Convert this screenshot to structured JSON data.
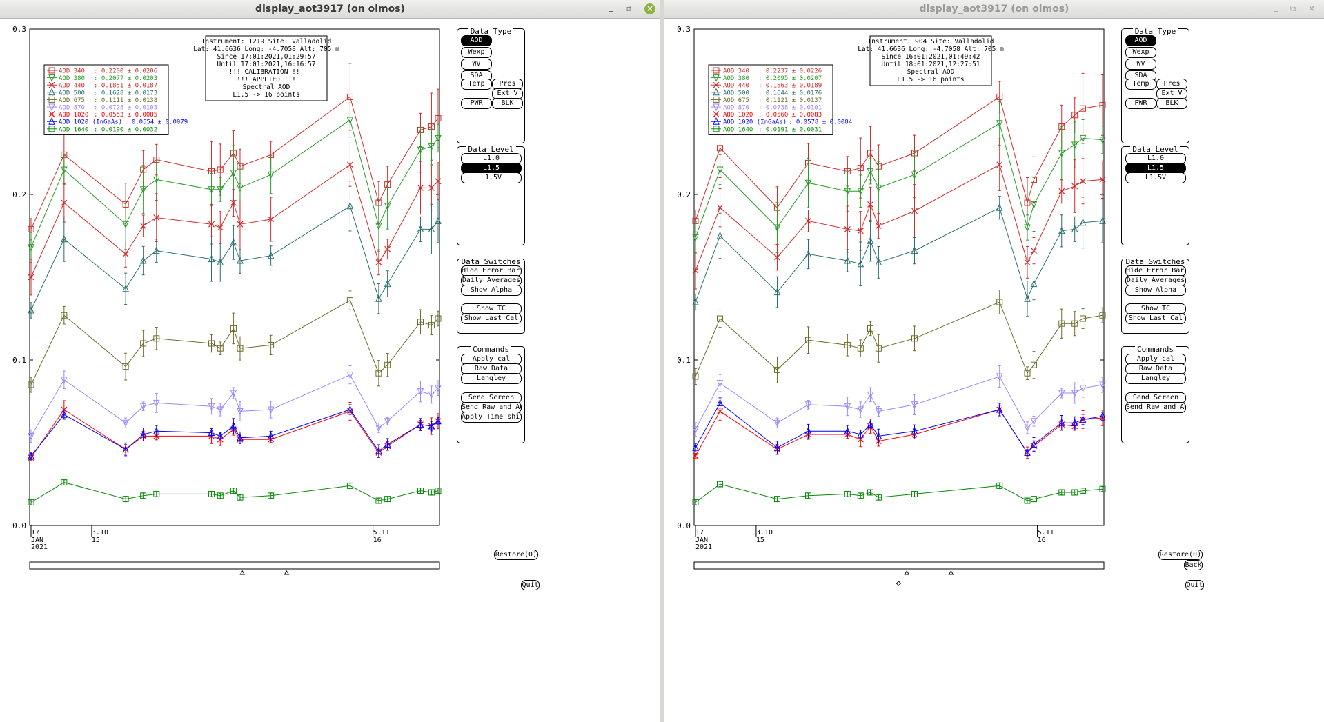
{
  "windows": [
    {
      "title": "display_aot3917 (on olmos)",
      "active": true,
      "info": [
        "Instrument: 1219 Site: Valladolid",
        "Lat: 41.6636 Long: -4.7058 Alt: 705 m",
        "Since 17:01:2021,01:29:57",
        "Until 17:01:2021,16:16:57",
        "!!! CALIBRATION !!!",
        "!!!  APPLIED  !!!",
        "Spectral AOD",
        "L1.5 -> 16 points"
      ],
      "legend": [
        {
          "label": "AOD 340",
          "value": ": 0.2200 ± 0.0206",
          "color": "#d12a2a",
          "marker": "square"
        },
        {
          "label": "AOD 380",
          "value": ": 0.2077 ± 0.0203",
          "color": "#2a9a2a",
          "marker": "tri-down"
        },
        {
          "label": "AOD 440",
          "value": ": 0.1851 ± 0.0187",
          "color": "#d12a2a",
          "marker": "cross"
        },
        {
          "label": "AOD 500",
          "value": ": 0.1628 ± 0.0173",
          "color": "#2a6e6e",
          "marker": "tri-up"
        },
        {
          "label": "AOD 675",
          "value": ": 0.1111 ± 0.0138",
          "color": "#6b6b2a",
          "marker": "square"
        },
        {
          "label": "AOD 870",
          "value": ": 0.0728 ± 0.0103",
          "color": "#9a88ff",
          "marker": "tri-down"
        },
        {
          "label": "AOD 1020",
          "value": ": 0.0553 ± 0.0085",
          "color": "#ff0000",
          "marker": "cross"
        },
        {
          "label": "AOD 1020 (InGaAs)",
          "value": ": 0.0554 ± 0.0079",
          "color": "#0000ff",
          "marker": "tri-up"
        },
        {
          "label": "AOD 1640",
          "value": ": 0.0190 ± 0.0032",
          "color": "#0a8a0a",
          "marker": "square"
        }
      ],
      "chart_data": {
        "type": "line",
        "ylim": [
          0,
          0.3
        ],
        "yticks": [
          "0.0",
          "0.1",
          "0.2",
          "0.3"
        ],
        "x_tick_labels": [
          {
            "top": "17",
            "lines": [
              "JAN",
              "2021"
            ]
          },
          {
            "top": "3.10",
            "lines": [
              "15"
            ]
          },
          {
            "top": "5.11",
            "lines": [
              "16"
            ]
          }
        ],
        "x": [
          0,
          1.5,
          4.3,
          5.1,
          5.7,
          8.2,
          8.6,
          9.2,
          9.5,
          10.9,
          14.5,
          15.8,
          16.2,
          17.7,
          18.2,
          18.5
        ],
        "series": [
          {
            "name": "AOD 340",
            "values": [
              0.179,
              0.224,
              0.194,
              0.215,
              0.221,
              0.214,
              0.215,
              0.225,
              0.217,
              0.224,
              0.259,
              0.195,
              0.206,
              0.239,
              0.241,
              0.246
            ]
          },
          {
            "name": "AOD 380",
            "values": [
              0.168,
              0.215,
              0.182,
              0.203,
              0.209,
              0.203,
              0.203,
              0.213,
              0.204,
              0.212,
              0.245,
              0.181,
              0.193,
              0.227,
              0.229,
              0.234
            ]
          },
          {
            "name": "AOD 440",
            "values": [
              0.15,
              0.195,
              0.164,
              0.181,
              0.186,
              0.182,
              0.18,
              0.195,
              0.182,
              0.185,
              0.218,
              0.159,
              0.167,
              0.204,
              0.204,
              0.208
            ]
          },
          {
            "name": "AOD 500",
            "values": [
              0.13,
              0.173,
              0.143,
              0.16,
              0.166,
              0.161,
              0.159,
              0.171,
              0.16,
              0.163,
              0.193,
              0.137,
              0.146,
              0.179,
              0.179,
              0.184
            ]
          },
          {
            "name": "AOD 675",
            "values": [
              0.085,
              0.127,
              0.096,
              0.11,
              0.113,
              0.11,
              0.107,
              0.119,
              0.107,
              0.109,
              0.136,
              0.092,
              0.097,
              0.123,
              0.121,
              0.125
            ]
          },
          {
            "name": "AOD 870",
            "values": [
              0.054,
              0.088,
              0.062,
              0.072,
              0.074,
              0.072,
              0.07,
              0.08,
              0.069,
              0.07,
              0.091,
              0.059,
              0.063,
              0.081,
              0.079,
              0.083
            ]
          },
          {
            "name": "AOD 1020",
            "values": [
              0.041,
              0.07,
              0.046,
              0.054,
              0.054,
              0.054,
              0.052,
              0.058,
              0.052,
              0.052,
              0.069,
              0.044,
              0.048,
              0.061,
              0.06,
              0.063
            ]
          },
          {
            "name": "AOD 1020 (InGaAs)",
            "values": [
              0.042,
              0.067,
              0.046,
              0.055,
              0.057,
              0.056,
              0.054,
              0.06,
              0.053,
              0.054,
              0.07,
              0.045,
              0.049,
              0.061,
              0.06,
              0.063
            ]
          },
          {
            "name": "AOD 1640",
            "values": [
              0.014,
              0.026,
              0.016,
              0.018,
              0.019,
              0.019,
              0.018,
              0.021,
              0.017,
              0.018,
              0.024,
              0.015,
              0.016,
              0.021,
              0.02,
              0.021
            ]
          }
        ]
      },
      "scroll_markers": [
        "triangle",
        "triangle"
      ],
      "show_back": false,
      "show_diamond": false
    },
    {
      "title": "display_aot3917 (on olmos)",
      "active": false,
      "info": [
        "Instrument: 904 Site: Valladolid",
        "Lat: 41.6636 Long: -4.7058 Alt: 705 m",
        "Since 16:01:2021,01:49:42",
        "Until 18:01:2021,12:27:51",
        "Spectral AOD",
        "L1.5 -> 16 points"
      ],
      "legend": [
        {
          "label": "AOD 340",
          "value": ": 0.2237 ± 0.0226",
          "color": "#d12a2a",
          "marker": "square"
        },
        {
          "label": "AOD 380",
          "value": ": 0.2095 ± 0.0207",
          "color": "#2a9a2a",
          "marker": "tri-down"
        },
        {
          "label": "AOD 440",
          "value": ": 0.1863 ± 0.0189",
          "color": "#d12a2a",
          "marker": "cross"
        },
        {
          "label": "AOD 500",
          "value": ": 0.1644 ± 0.0176",
          "color": "#2a6e6e",
          "marker": "tri-up"
        },
        {
          "label": "AOD 675",
          "value": ": 0.1121 ± 0.0137",
          "color": "#6b6b2a",
          "marker": "square"
        },
        {
          "label": "AOD 870",
          "value": ": 0.0738 ± 0.0101",
          "color": "#9a88ff",
          "marker": "tri-down"
        },
        {
          "label": "AOD 1020",
          "value": ": 0.0560 ± 0.0083",
          "color": "#ff0000",
          "marker": "cross"
        },
        {
          "label": "AOD 1020 (InGaAs)",
          "value": ": 0.0578 ± 0.0084",
          "color": "#0000ff",
          "marker": "tri-up"
        },
        {
          "label": "AOD 1640",
          "value": ": 0.0191 ± 0.0031",
          "color": "#0a8a0a",
          "marker": "square"
        }
      ],
      "chart_data": {
        "type": "line",
        "ylim": [
          0,
          0.3
        ],
        "yticks": [
          "0.0",
          "0.1",
          "0.2",
          "0.3"
        ],
        "x_tick_labels": [
          {
            "top": "17",
            "lines": [
              "JAN",
              "2021"
            ]
          },
          {
            "top": "3.10",
            "lines": [
              "15"
            ]
          },
          {
            "top": "5.11",
            "lines": [
              "16"
            ]
          }
        ],
        "x": [
          0,
          1.5,
          5.0,
          6.9,
          9.3,
          10.1,
          10.7,
          11.2,
          13.4,
          18.6,
          20.3,
          20.7,
          22.4,
          23.2,
          23.7,
          24.9
        ],
        "series": [
          {
            "name": "AOD 340",
            "values": [
              0.184,
              0.228,
              0.192,
              0.219,
              0.214,
              0.216,
              0.225,
              0.217,
              0.225,
              0.259,
              0.195,
              0.209,
              0.241,
              0.248,
              0.252,
              0.254
            ]
          },
          {
            "name": "AOD 380",
            "values": [
              0.174,
              0.215,
              0.18,
              0.207,
              0.202,
              0.202,
              0.214,
              0.204,
              0.212,
              0.243,
              0.18,
              0.194,
              0.225,
              0.23,
              0.234,
              0.233
            ]
          },
          {
            "name": "AOD 440",
            "values": [
              0.154,
              0.192,
              0.162,
              0.184,
              0.179,
              0.178,
              0.194,
              0.181,
              0.19,
              0.218,
              0.159,
              0.166,
              0.202,
              0.205,
              0.208,
              0.209
            ]
          },
          {
            "name": "AOD 500",
            "values": [
              0.135,
              0.175,
              0.141,
              0.164,
              0.16,
              0.158,
              0.172,
              0.159,
              0.166,
              0.192,
              0.137,
              0.146,
              0.178,
              0.179,
              0.183,
              0.184
            ]
          },
          {
            "name": "AOD 675",
            "values": [
              0.09,
              0.125,
              0.094,
              0.112,
              0.109,
              0.107,
              0.119,
              0.107,
              0.113,
              0.135,
              0.092,
              0.097,
              0.122,
              0.122,
              0.125,
              0.127
            ]
          },
          {
            "name": "AOD 870",
            "values": [
              0.058,
              0.086,
              0.062,
              0.073,
              0.072,
              0.07,
              0.079,
              0.069,
              0.073,
              0.09,
              0.059,
              0.063,
              0.08,
              0.08,
              0.083,
              0.085
            ]
          },
          {
            "name": "AOD 1020",
            "values": [
              0.042,
              0.069,
              0.046,
              0.055,
              0.055,
              0.052,
              0.06,
              0.051,
              0.055,
              0.07,
              0.044,
              0.048,
              0.061,
              0.06,
              0.064,
              0.065
            ]
          },
          {
            "name": "AOD 1020 (InGaAs)",
            "values": [
              0.047,
              0.074,
              0.047,
              0.057,
              0.057,
              0.055,
              0.061,
              0.054,
              0.057,
              0.07,
              0.044,
              0.049,
              0.062,
              0.062,
              0.064,
              0.066
            ]
          },
          {
            "name": "AOD 1640",
            "values": [
              0.014,
              0.025,
              0.016,
              0.018,
              0.019,
              0.018,
              0.02,
              0.017,
              0.019,
              0.024,
              0.015,
              0.016,
              0.02,
              0.02,
              0.021,
              0.022
            ]
          }
        ]
      },
      "scroll_markers": [
        "triangle",
        "triangle"
      ],
      "show_back": true,
      "show_diamond": true
    }
  ],
  "controls": {
    "data_type": {
      "title": "Data Type",
      "buttons": [
        "AOD",
        "Wexp",
        "WV",
        "SDA",
        "Temp",
        "Pres",
        "Ext V",
        "PWR",
        "BLK"
      ],
      "selected": "AOD"
    },
    "data_level": {
      "title": "Data Level",
      "buttons": [
        "L1.0",
        "L1.5",
        "L1.5V"
      ],
      "selected": "L1.5"
    },
    "data_switches": {
      "title": "Data Switches",
      "buttons": [
        "Hide Error Bars",
        "Daily Averages",
        "Show Alpha",
        "Show TC",
        "Show Last Cal"
      ]
    },
    "commands": {
      "title": "Commands",
      "left_buttons": [
        "Apply cal",
        "Raw Data",
        "Langley",
        "Send Screen",
        "Send Raw and AOD",
        "Apply Time shift"
      ],
      "right_buttons": [
        "Apply cal",
        "Raw Data",
        "Langley",
        "Send Screen",
        "Send Raw and AOD"
      ]
    },
    "restore": "Restore(0)",
    "back": "Back",
    "quit": "Quit"
  },
  "error_bar_fraction": 0.06
}
